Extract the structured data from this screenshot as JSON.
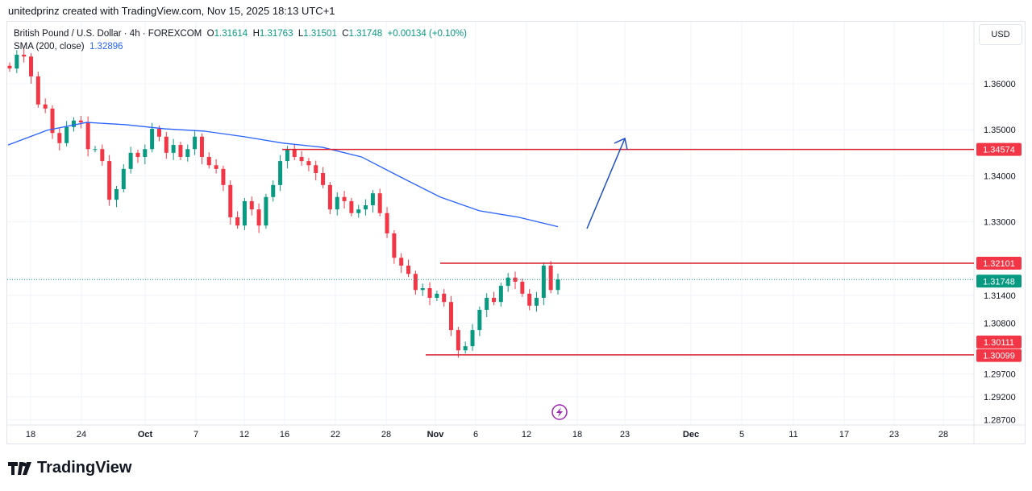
{
  "credit": "unitedprinz created with TradingView.com, Nov 15, 2025 18:13 UTC+1",
  "legend": {
    "symbol": "British Pound / U.S. Dollar · 4h · FOREXCOM",
    "o_label": "O",
    "o": "1.31614",
    "h_label": "H",
    "h": "1.31763",
    "l_label": "L",
    "l": "1.31501",
    "c_label": "C",
    "c": "1.31748",
    "change": "+0.00134 (+0.10%)",
    "sma_label": "SMA (200, close)",
    "sma_value": "1.32896"
  },
  "currency": "USD",
  "logo_text": "TradingView",
  "colors": {
    "up": "#089981",
    "down": "#f23645",
    "sma": "#2962ff",
    "level": "#d81e2c",
    "arrow": "#1e4fc2",
    "alert": "#9c27b0"
  },
  "chart_data": {
    "type": "candlestick",
    "timeframe": "4h",
    "x_tick_labels": [
      "18",
      "24",
      "Oct",
      "7",
      "12",
      "16",
      "22",
      "28",
      "Nov",
      "6",
      "12",
      "18",
      "23",
      "Dec",
      "5",
      "11",
      "17",
      "23",
      "28"
    ],
    "y_tick_labels": [
      "1.36000",
      "1.35000",
      "1.34000",
      "1.33000",
      "1.31400",
      "1.30800",
      "1.29700",
      "1.29200",
      "1.28700"
    ],
    "y_ticks": [
      1.36,
      1.35,
      1.34,
      1.33,
      1.314,
      1.308,
      1.297,
      1.292,
      1.287
    ],
    "closes": [
      1.3633,
      1.3663,
      1.3659,
      1.3616,
      1.3555,
      1.3546,
      1.3493,
      1.3471,
      1.3506,
      1.352,
      1.3516,
      1.3458,
      1.3458,
      1.3432,
      1.3348,
      1.3371,
      1.3415,
      1.345,
      1.3441,
      1.3458,
      1.3502,
      1.3485,
      1.345,
      1.3467,
      1.3441,
      1.3458,
      1.3485,
      1.3441,
      1.3423,
      1.3415,
      1.338,
      1.331,
      1.3292,
      1.3345,
      1.3327,
      1.3292,
      1.3354,
      1.338,
      1.3432,
      1.3458,
      1.3441,
      1.3432,
      1.3423,
      1.3406,
      1.338,
      1.3327,
      1.3354,
      1.3345,
      1.3319,
      1.3327,
      1.3336,
      1.3362,
      1.3319,
      1.3275,
      1.3222,
      1.3205,
      1.3187,
      1.3152,
      1.3156,
      1.3135,
      1.3144,
      1.3126,
      1.3065,
      1.3021,
      1.303,
      1.3065,
      1.3109,
      1.3135,
      1.3126,
      1.3161,
      1.3179,
      1.317,
      1.3144,
      1.3118,
      1.3135,
      1.3205,
      1.3152,
      1.31748
    ],
    "sma_200": [
      1.3467,
      1.3499,
      1.3516,
      1.3511,
      1.3502,
      1.3497,
      1.3485,
      1.3471,
      1.3462,
      1.3441,
      1.3397,
      1.3354,
      1.3324,
      1.331,
      1.32896
    ],
    "last_price": {
      "value": 1.31748,
      "label": "1.31748"
    },
    "levels": [
      {
        "value": 1.34574,
        "label": "1.34574"
      },
      {
        "value": 1.32101,
        "label": "1.32101"
      },
      {
        "value": 1.30111,
        "label": "1.30111"
      },
      {
        "value": 1.30099,
        "label": "1.30099"
      }
    ],
    "grid": true
  }
}
